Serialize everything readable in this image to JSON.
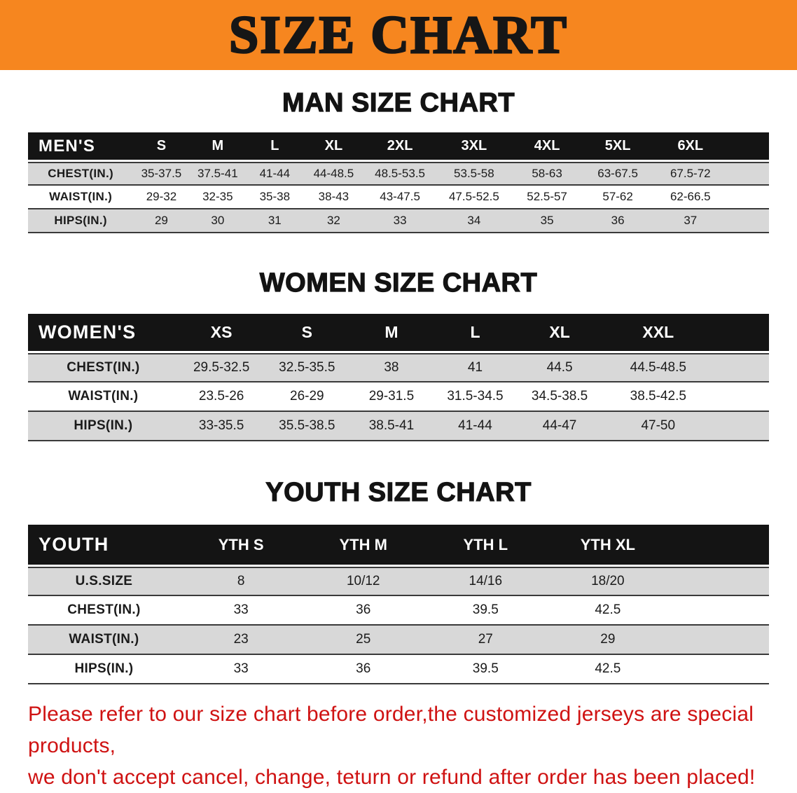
{
  "title": "SIZE CHART",
  "colors": {
    "banner_orange": "#f6861f",
    "table_header_black": "#141414",
    "stripe_gray": "#d8d8d8",
    "disclaimer_red": "#cf1212"
  },
  "tables": [
    {
      "id": "men",
      "title": "MAN SIZE CHART",
      "corner_label": "MEN'S",
      "columns": [
        "S",
        "M",
        "L",
        "XL",
        "2XL",
        "3XL",
        "4XL",
        "5XL",
        "6XL"
      ],
      "rows": [
        {
          "label": "CHEST(IN.)",
          "values": [
            "35-37.5",
            "37.5-41",
            "41-44",
            "44-48.5",
            "48.5-53.5",
            "53.5-58",
            "58-63",
            "63-67.5",
            "67.5-72"
          ]
        },
        {
          "label": "WAIST(IN.)",
          "values": [
            "29-32",
            "32-35",
            "35-38",
            "38-43",
            "43-47.5",
            "47.5-52.5",
            "52.5-57",
            "57-62",
            "62-66.5"
          ]
        },
        {
          "label": "HIPS(IN.)",
          "values": [
            "29",
            "30",
            "31",
            "32",
            "33",
            "34",
            "35",
            "36",
            "37"
          ]
        }
      ]
    },
    {
      "id": "women",
      "title": "WOMEN SIZE CHART",
      "corner_label": "WOMEN'S",
      "columns": [
        "XS",
        "S",
        "M",
        "L",
        "XL",
        "XXL"
      ],
      "rows": [
        {
          "label": "CHEST(IN.)",
          "values": [
            "29.5-32.5",
            "32.5-35.5",
            "38",
            "41",
            "44.5",
            "44.5-48.5"
          ]
        },
        {
          "label": "WAIST(IN.)",
          "values": [
            "23.5-26",
            "26-29",
            "29-31.5",
            "31.5-34.5",
            "34.5-38.5",
            "38.5-42.5"
          ]
        },
        {
          "label": "HIPS(IN.)",
          "values": [
            "33-35.5",
            "35.5-38.5",
            "38.5-41",
            "41-44",
            "44-47",
            "47-50"
          ]
        }
      ]
    },
    {
      "id": "youth",
      "title": "YOUTH SIZE CHART",
      "corner_label": "YOUTH",
      "columns": [
        "YTH S",
        "YTH M",
        "YTH L",
        "YTH XL"
      ],
      "rows": [
        {
          "label": "U.S.SIZE",
          "values": [
            "8",
            "10/12",
            "14/16",
            "18/20"
          ]
        },
        {
          "label": "CHEST(IN.)",
          "values": [
            "33",
            "36",
            "39.5",
            "42.5"
          ]
        },
        {
          "label": "WAIST(IN.)",
          "values": [
            "23",
            "25",
            "27",
            "29"
          ]
        },
        {
          "label": "HIPS(IN.)",
          "values": [
            "33",
            "36",
            "39.5",
            "42.5"
          ]
        }
      ]
    }
  ],
  "disclaimer": {
    "line1": "Please refer to our size chart before order,the customized jerseys are special products,",
    "line2": "we don't accept cancel, change, teturn or refund after order has been placed!"
  }
}
